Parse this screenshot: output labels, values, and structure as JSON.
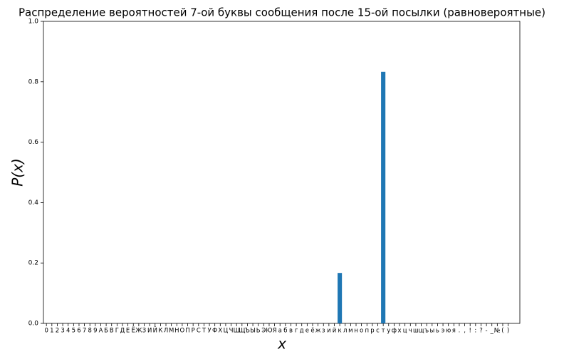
{
  "chart_data": {
    "type": "bar",
    "title": "Распределение вероятностей 7-ой буквы сообщения после 15-ой посылки (равновероятные)",
    "x_label": "x",
    "y_label": "P(x)",
    "categories": [
      "0",
      "1",
      "2",
      "3",
      "4",
      "5",
      "6",
      "7",
      "8",
      "9",
      "А",
      "Б",
      "В",
      "Г",
      "Д",
      "Е",
      "Ё",
      "Ж",
      "З",
      "И",
      "Й",
      "К",
      "Л",
      "М",
      "Н",
      "О",
      "П",
      "Р",
      "С",
      "Т",
      "У",
      "Ф",
      "Х",
      "Ц",
      "Ч",
      "Ш",
      "Щ",
      "Ъ",
      "Ы",
      "Ь",
      "Э",
      "Ю",
      "Я",
      "а",
      "б",
      "в",
      "г",
      "д",
      "е",
      "ё",
      "ж",
      "з",
      "и",
      "й",
      "к",
      "л",
      "м",
      "н",
      "о",
      "п",
      "р",
      "с",
      "т",
      "у",
      "ф",
      "х",
      "ц",
      "ч",
      "ш",
      "щ",
      "ъ",
      "ы",
      "ь",
      "э",
      "ю",
      "я",
      ".",
      ",",
      "!",
      ":",
      "?",
      "-",
      "_",
      "№",
      "(",
      ")"
    ],
    "values": [
      0,
      0,
      0,
      0,
      0,
      0,
      0,
      0,
      0,
      0,
      0,
      0,
      0,
      0,
      0,
      0,
      0,
      0,
      0,
      0,
      0,
      0,
      0,
      0,
      0,
      0,
      0,
      0,
      0,
      0,
      0,
      0,
      0,
      0,
      0,
      0,
      0,
      0,
      0,
      0,
      0,
      0,
      0,
      0,
      0,
      0,
      0,
      0,
      0,
      0,
      0,
      0,
      0,
      0,
      0.167,
      0,
      0,
      0,
      0,
      0,
      0,
      0,
      0.833,
      0,
      0,
      0,
      0,
      0,
      0,
      0,
      0,
      0,
      0,
      0,
      0,
      0,
      0,
      0,
      0,
      0,
      0,
      0,
      0,
      0,
      0,
      0
    ],
    "color": "#1f77b4",
    "ylim": [
      0,
      1
    ],
    "yticks": [
      {
        "value": 0,
        "label": "0.0"
      },
      0.2,
      0.4,
      0.6,
      0.8,
      {
        "value": 1,
        "label": "1.0"
      }
    ],
    "grid": false
  }
}
